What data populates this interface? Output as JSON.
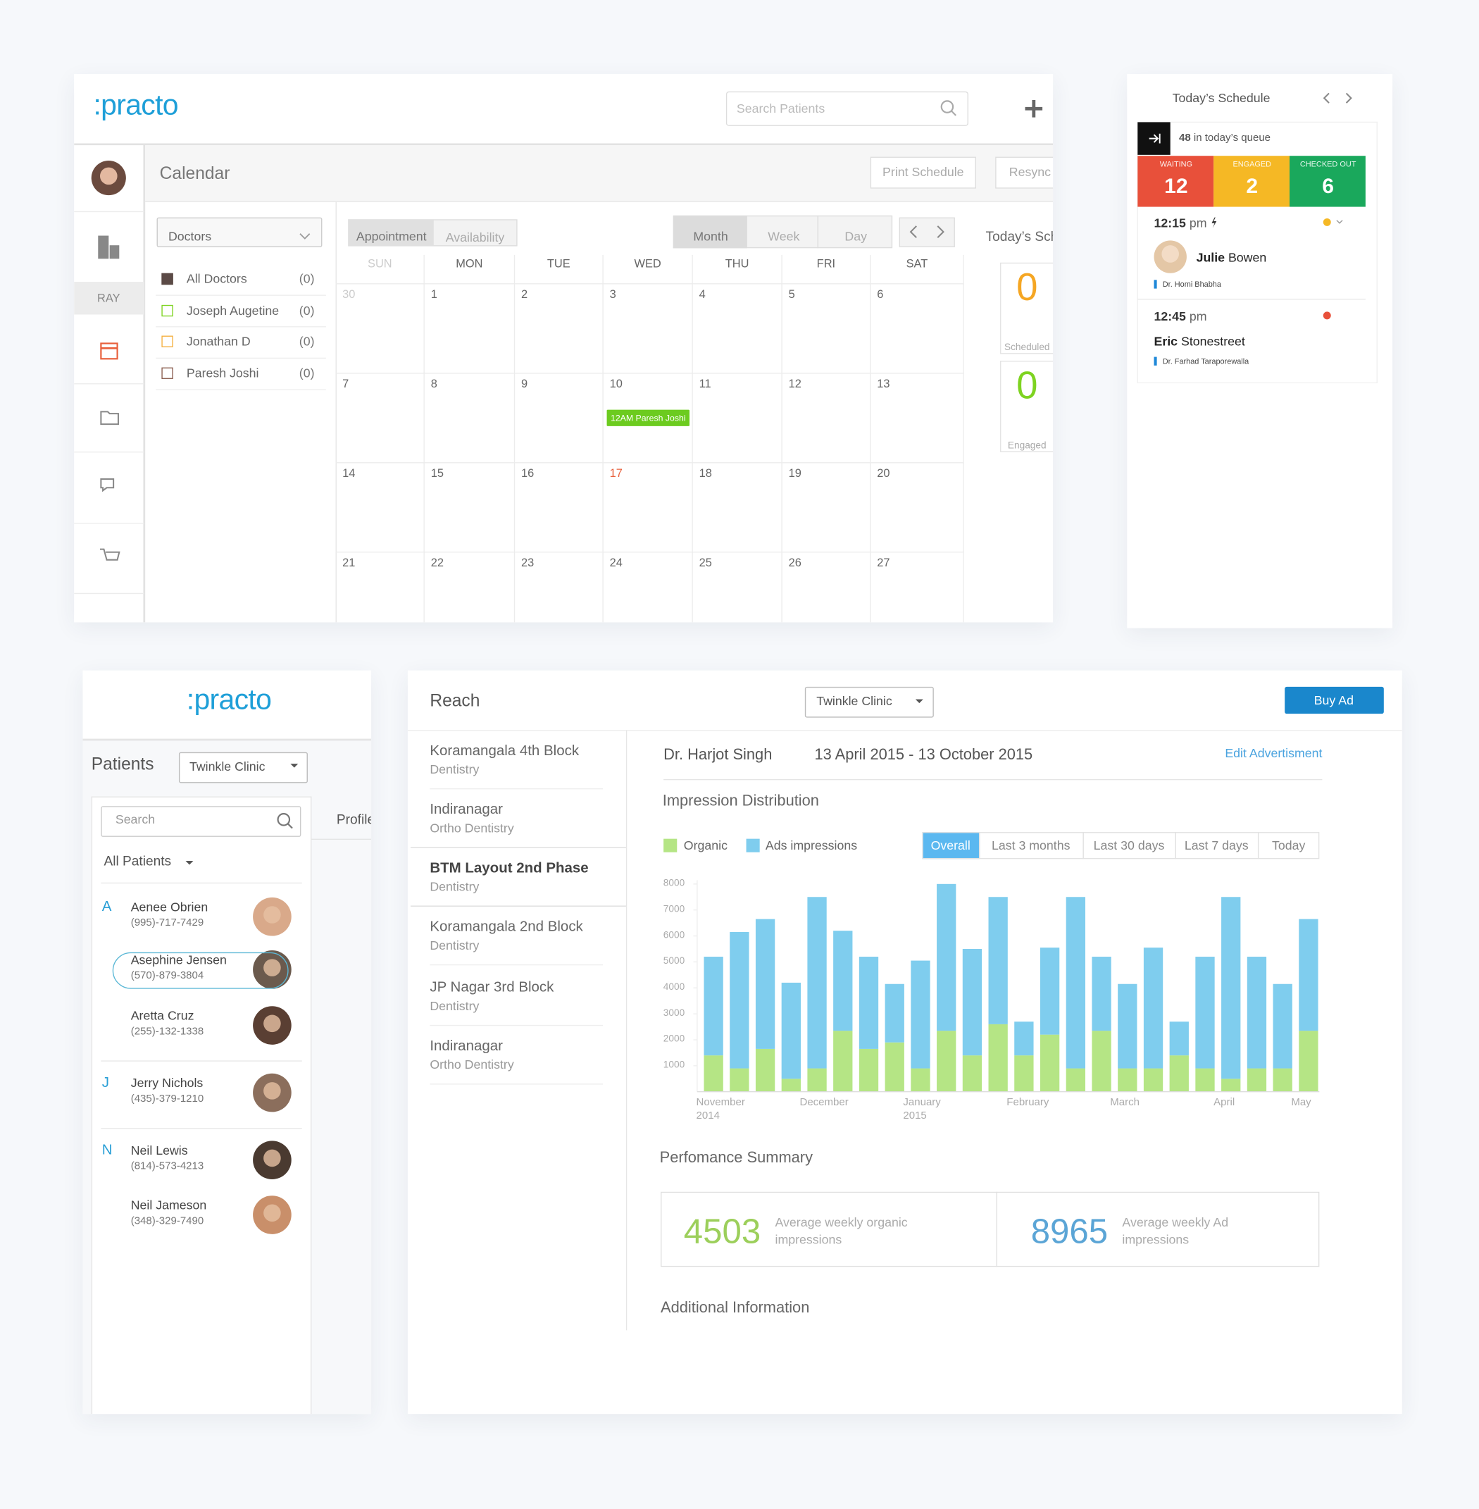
{
  "calendar": {
    "logo": ":practo",
    "search_placeholder": "Search Patients",
    "sidebar_label": "RAY",
    "title": "Calendar",
    "actions": [
      "Print Schedule",
      "Resync"
    ],
    "doctor_filter": "Doctors",
    "doctors": [
      {
        "name": "All Doctors",
        "count": "(0)",
        "color": "#5b4a46"
      },
      {
        "name": "Joseph Augetine",
        "count": "(0)",
        "color": "#7ed321"
      },
      {
        "name": "Jonathan D",
        "count": "(0)",
        "color": "#f5b041"
      },
      {
        "name": "Paresh Joshi",
        "count": "(0)",
        "color": "#8b5e50"
      }
    ],
    "view_tabs": [
      "Appointment",
      "Availability"
    ],
    "range_tabs": [
      "Month",
      "Week",
      "Day"
    ],
    "weekdays": [
      "SUN",
      "MON",
      "TUE",
      "WED",
      "THU",
      "FRI",
      "SAT"
    ],
    "weeks": [
      [
        30,
        1,
        2,
        3,
        4,
        5,
        6
      ],
      [
        7,
        8,
        9,
        10,
        11,
        12,
        13
      ],
      [
        14,
        15,
        16,
        17,
        18,
        19,
        20
      ],
      [
        21,
        22,
        23,
        24,
        25,
        26,
        27
      ]
    ],
    "today": 17,
    "event": {
      "day": 10,
      "label": "12AM Paresh Joshi"
    },
    "side_title": "Today’s Schedule",
    "side_stats": [
      {
        "value": 0,
        "label": "Scheduled",
        "color": "#f5a623"
      },
      {
        "value": 0,
        "label": "Engaged",
        "color": "#7ed321"
      }
    ]
  },
  "schedule": {
    "title": "Today’s Schedule",
    "queue_count": 48,
    "queue_text": "in today’s queue",
    "statuses": [
      {
        "label": "WAITING",
        "value": 12,
        "color": "#e8503a"
      },
      {
        "label": "ENGAGED",
        "value": 2,
        "color": "#f5b825"
      },
      {
        "label": "CHECKED OUT",
        "value": 6,
        "color": "#1aa85c"
      }
    ],
    "appointments": [
      {
        "time": "12:15",
        "period": "pm",
        "first": "Julie",
        "last": "Bowen",
        "doctor": "Dr. Homi Bhabha",
        "status_color": "#f5b825"
      },
      {
        "time": "12:45",
        "period": "pm",
        "first": "Eric",
        "last": "Stonestreet",
        "doctor": "Dr. Farhad Taraporewalla",
        "status_color": "#e8503a"
      }
    ]
  },
  "patients": {
    "logo": ":practo",
    "title": "Patients",
    "clinic": "Twinkle Clinic",
    "search_placeholder": "Search",
    "tab": "Profile",
    "filter": "All Patients",
    "groups": [
      {
        "letter": "A",
        "patients": [
          {
            "name": "Aenee Obrien",
            "phone": "(995)-717-7429"
          },
          {
            "name": "Asephine Jensen",
            "phone": "(570)-879-3804"
          },
          {
            "name": "Aretta Cruz",
            "phone": "(255)-132-1338"
          }
        ]
      },
      {
        "letter": "J",
        "patients": [
          {
            "name": "Jerry Nichols",
            "phone": "(435)-379-1210"
          }
        ]
      },
      {
        "letter": "N",
        "patients": [
          {
            "name": "Neil Lewis",
            "phone": "(814)-573-4213"
          },
          {
            "name": "Neil Jameson",
            "phone": "(348)-329-7490"
          }
        ]
      }
    ]
  },
  "reach": {
    "title": "Reach",
    "clinic": "Twinkle Clinic",
    "button": "Buy Ad",
    "locations": [
      {
        "name": "Koramangala 4th Block",
        "specialty": "Dentistry"
      },
      {
        "name": "Indiranagar",
        "specialty": "Ortho Dentistry"
      },
      {
        "name": "BTM Layout 2nd Phase",
        "specialty": "Dentistry"
      },
      {
        "name": "Koramangala 2nd Block",
        "specialty": "Dentistry"
      },
      {
        "name": "JP Nagar 3rd Block",
        "specialty": "Dentistry"
      },
      {
        "name": "Indiranagar",
        "specialty": "Ortho Dentistry"
      }
    ],
    "doctor": "Dr. Harjot Singh",
    "date_range": "13 April 2015 - 13 October 2015",
    "edit_link": "Edit Advertisment",
    "filters": [
      "Overall",
      "Last 3 months",
      "Last 30 days",
      "Last 7 days",
      "Today"
    ],
    "summary_title": "Perfomance Summary",
    "summary": [
      {
        "value": 4503,
        "label": "Average weekly organic impressions",
        "color": "#9ccf5b"
      },
      {
        "value": 8965,
        "label": "Average weekly Ad impressions",
        "color": "#5ba5d6"
      }
    ],
    "footer": "Additional Information"
  },
  "chart_data": {
    "type": "bar",
    "stacked": true,
    "title": "Impression Distribution",
    "categories": [
      "November 2014",
      null,
      null,
      null,
      "December",
      null,
      null,
      null,
      "January 2015",
      null,
      null,
      null,
      "February",
      null,
      null,
      null,
      "March",
      null,
      null,
      null,
      "April",
      null,
      null,
      "May"
    ],
    "series": [
      {
        "name": "Organic",
        "color": "#b5e585",
        "values": [
          1400,
          900,
          1650,
          500,
          900,
          2350,
          1650,
          1900,
          900,
          2350,
          1400,
          2600,
          1400,
          2200,
          900,
          2350,
          900,
          900,
          1400,
          900,
          500,
          900,
          900,
          2350
        ]
      },
      {
        "name": "Ads impressions",
        "color": "#7fcdee",
        "values": [
          3800,
          5250,
          5000,
          3700,
          6600,
          3850,
          3550,
          2250,
          4150,
          5650,
          4100,
          4900,
          1300,
          3350,
          6600,
          2850,
          3250,
          4650,
          1300,
          4300,
          7000,
          4300,
          3250,
          4300
        ]
      }
    ],
    "ylim": [
      0,
      8000
    ],
    "yticks": [
      1000,
      2000,
      3000,
      4000,
      5000,
      6000,
      7000,
      8000
    ],
    "grid": false
  }
}
